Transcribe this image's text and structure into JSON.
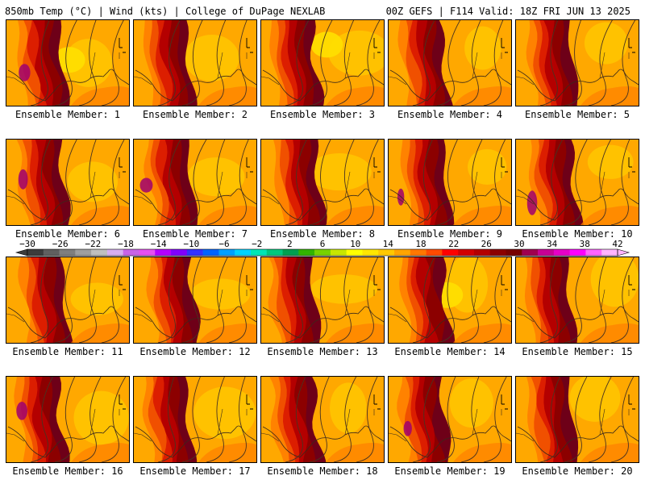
{
  "header": {
    "left_title": "850mb Temp (°C) | Wind (kts) | College of DuPage NEXLAB",
    "right_title": "00Z GEFS | F114 Valid: 18Z FRI JUN 13 2025"
  },
  "members": [
    {
      "label": "Ensemble Member: 1"
    },
    {
      "label": "Ensemble Member: 2"
    },
    {
      "label": "Ensemble Member: 3"
    },
    {
      "label": "Ensemble Member: 4"
    },
    {
      "label": "Ensemble Member: 5"
    },
    {
      "label": "Ensemble Member: 6"
    },
    {
      "label": "Ensemble Member: 7"
    },
    {
      "label": "Ensemble Member: 8"
    },
    {
      "label": "Ensemble Member: 9"
    },
    {
      "label": "Ensemble Member: 10"
    },
    {
      "label": "Ensemble Member: 11"
    },
    {
      "label": "Ensemble Member: 12"
    },
    {
      "label": "Ensemble Member: 13"
    },
    {
      "label": "Ensemble Member: 14"
    },
    {
      "label": "Ensemble Member: 15"
    },
    {
      "label": "Ensemble Member: 16"
    },
    {
      "label": "Ensemble Member: 17"
    },
    {
      "label": "Ensemble Member: 18"
    },
    {
      "label": "Ensemble Member: 19"
    },
    {
      "label": "Ensemble Member: 20"
    }
  ],
  "colorbar": {
    "labels": [
      "−30",
      "−26",
      "−22",
      "−18",
      "−14",
      "−10",
      "−6",
      "−2",
      "2",
      "6",
      "10",
      "14",
      "18",
      "22",
      "26",
      "30",
      "34",
      "38",
      "42"
    ],
    "colors": [
      "#3c3c3c",
      "#606060",
      "#7f7f7f",
      "#9f9f9f",
      "#bfbfbf",
      "#d7aef0",
      "#c864e6",
      "#e650f0",
      "#b400ff",
      "#8000ff",
      "#3232ff",
      "#0064ff",
      "#00a0ff",
      "#00d2ff",
      "#00e6b4",
      "#00c87d",
      "#00a050",
      "#32b400",
      "#78d200",
      "#c8e600",
      "#ffff00",
      "#ffe600",
      "#ffc800",
      "#ffa500",
      "#ff7800",
      "#ff4b00",
      "#ff0000",
      "#d20000",
      "#b40000",
      "#8c0000",
      "#780000",
      "#a00050",
      "#c80096",
      "#e600c8",
      "#ff00ff",
      "#ff64ff",
      "#ffb4ff"
    ]
  },
  "palette": {
    "dark_maroon": "#6e0018",
    "maroon": "#8c0000",
    "dark_red": "#b40000",
    "red": "#dc1e00",
    "red_orange": "#f05000",
    "orange": "#ff8200",
    "orange_yellow": "#ffa800",
    "gold": "#ffc800",
    "yellow": "#ffe000",
    "magenta": "#a0006e"
  }
}
